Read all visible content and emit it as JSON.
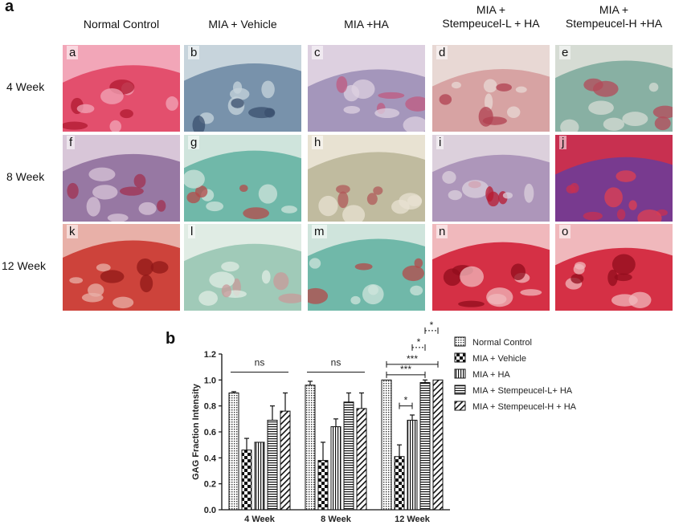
{
  "figure": {
    "panel_a": "a",
    "panel_b": "b",
    "columns": [
      "Normal Control",
      "MIA + Vehicle",
      "MIA +HA",
      "MIA +\nStempeucel-L + HA",
      "MIA +\nStempeucel-H +HA"
    ],
    "rows": [
      "4 Week",
      "8 Week",
      "12 Week"
    ],
    "tiles": [
      {
        "label": "a",
        "stain": "pink"
      },
      {
        "label": "b",
        "stain": "blue"
      },
      {
        "label": "c",
        "stain": "lavender"
      },
      {
        "label": "d",
        "stain": "rose"
      },
      {
        "label": "e",
        "stain": "teal-rose"
      },
      {
        "label": "f",
        "stain": "purple"
      },
      {
        "label": "g",
        "stain": "green"
      },
      {
        "label": "h",
        "stain": "tan"
      },
      {
        "label": "i",
        "stain": "lavender-red"
      },
      {
        "label": "j",
        "stain": "red-purple"
      },
      {
        "label": "k",
        "stain": "red"
      },
      {
        "label": "l",
        "stain": "green-pale"
      },
      {
        "label": "m",
        "stain": "green"
      },
      {
        "label": "n",
        "stain": "red-bright"
      },
      {
        "label": "o",
        "stain": "red-bright"
      }
    ]
  },
  "chart_data": {
    "type": "bar",
    "title": "",
    "xlabel": "",
    "ylabel": "GAG Fraction Intensity",
    "ylim": [
      0,
      1.2
    ],
    "yticks": [
      "0.0",
      "0.2",
      "0.4",
      "0.6",
      "0.8",
      "1.0",
      "1.2"
    ],
    "categories": [
      "4 Week",
      "8 Week",
      "12 Week"
    ],
    "legend_position": "right",
    "series": [
      {
        "name": "Normal Control",
        "values": [
          0.9,
          0.96,
          1.0
        ],
        "errors": [
          0.01,
          0.03,
          0.0
        ],
        "pattern": "dots"
      },
      {
        "name": "MIA + Vehicle",
        "values": [
          0.46,
          0.38,
          0.41
        ],
        "errors": [
          0.09,
          0.14,
          0.09
        ],
        "pattern": "checker"
      },
      {
        "name": "MIA + HA",
        "values": [
          0.52,
          0.64,
          0.69
        ],
        "errors": [
          0.0,
          0.06,
          0.04
        ],
        "pattern": "vlines"
      },
      {
        "name": "MIA + Stempeucel-L+ HA",
        "values": [
          0.69,
          0.83,
          0.98
        ],
        "errors": [
          0.11,
          0.07,
          0.02
        ],
        "pattern": "hlines"
      },
      {
        "name": "MIA + Stempeucel-H + HA",
        "values": [
          0.76,
          0.78,
          1.0
        ],
        "errors": [
          0.14,
          0.12,
          0.0
        ],
        "pattern": "diag"
      }
    ],
    "annotations": [
      {
        "text": "ns",
        "group": "4 Week"
      },
      {
        "text": "ns",
        "group": "8 Week"
      },
      {
        "text": "*",
        "group": "12 Week",
        "from": "MIA + Stempeucel-L+ HA",
        "to": "MIA + Stempeucel-H + HA",
        "style": "dotted"
      },
      {
        "text": "*",
        "group": "12 Week",
        "from": "MIA + HA",
        "to": "MIA + Stempeucel-L+ HA",
        "style": "dotted"
      },
      {
        "text": "***",
        "group": "12 Week",
        "from": "Normal Control",
        "to": "MIA + Stempeucel-H + HA",
        "style": "solid"
      },
      {
        "text": "***",
        "group": "12 Week",
        "from": "Normal Control",
        "to": "MIA + Stempeucel-L+ HA",
        "style": "solid"
      },
      {
        "text": "*",
        "group": "12 Week",
        "from": "MIA + Vehicle",
        "to": "MIA + HA",
        "style": "solid"
      }
    ]
  },
  "colors": {
    "pink": [
      "#f2a6b8",
      "#e0405f",
      "#b01830"
    ],
    "blue": [
      "#c7d4dc",
      "#6a86a2",
      "#3a4f6e"
    ],
    "lavender": [
      "#ddd0e0",
      "#9a8cb4",
      "#c05a80"
    ],
    "rose": [
      "#e8d8d4",
      "#d49a9a",
      "#b04050"
    ],
    "teal-rose": [
      "#d6dcd4",
      "#7aa89a",
      "#b44a58"
    ],
    "purple": [
      "#d8c6d8",
      "#8c6a9a",
      "#a03050"
    ],
    "green": [
      "#cfe4dc",
      "#5fb0a0",
      "#b44a4a"
    ],
    "tan": [
      "#e8e2d2",
      "#b8b496",
      "#b05a5a"
    ],
    "lavender-red": [
      "#dcd0dc",
      "#a48cb4",
      "#b81a30"
    ],
    "red-purple": [
      "#c83050",
      "#6a3c9a",
      "#e04050"
    ],
    "red": [
      "#e8b0a8",
      "#c83028",
      "#901818"
    ],
    "green-pale": [
      "#e0ece4",
      "#94c4b0",
      "#c89a9a"
    ],
    "red-bright": [
      "#f0b8bc",
      "#d01830",
      "#900c1c"
    ]
  }
}
